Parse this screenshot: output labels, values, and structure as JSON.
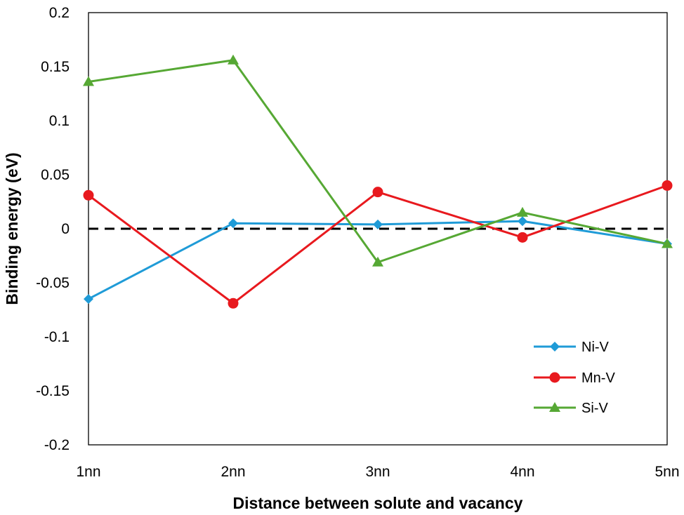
{
  "chart_data": {
    "type": "line",
    "title": "",
    "xlabel": "Distance between solute and vacancy",
    "ylabel": "Binding energy (eV)",
    "categories": [
      "1nn",
      "2nn",
      "3nn",
      "4nn",
      "5nn"
    ],
    "ylim": [
      -0.2,
      0.2
    ],
    "yticks": [
      0.2,
      0.15,
      0.1,
      0.05,
      0,
      -0.05,
      -0.1,
      -0.15,
      -0.2
    ],
    "ytick_labels": [
      "0.2",
      "0.15",
      "0.1",
      "0.05",
      "0",
      "-0.05",
      "-0.1",
      "-0.15",
      "-0.2"
    ],
    "grid": false,
    "reference_line": {
      "y": 0,
      "style": "dashed",
      "color": "#000000"
    },
    "legend_position": "bottom-right",
    "series": [
      {
        "name": "Ni-V",
        "color": "#1f9bd7",
        "marker": "diamond",
        "values": [
          -0.065,
          0.005,
          0.004,
          0.007,
          -0.014
        ]
      },
      {
        "name": "Mn-V",
        "color": "#e8191e",
        "marker": "circle",
        "values": [
          0.031,
          -0.069,
          0.034,
          -0.008,
          0.04
        ]
      },
      {
        "name": "Si-V",
        "color": "#56a834",
        "marker": "triangle",
        "values": [
          0.136,
          0.156,
          -0.031,
          0.015,
          -0.014
        ]
      }
    ]
  }
}
